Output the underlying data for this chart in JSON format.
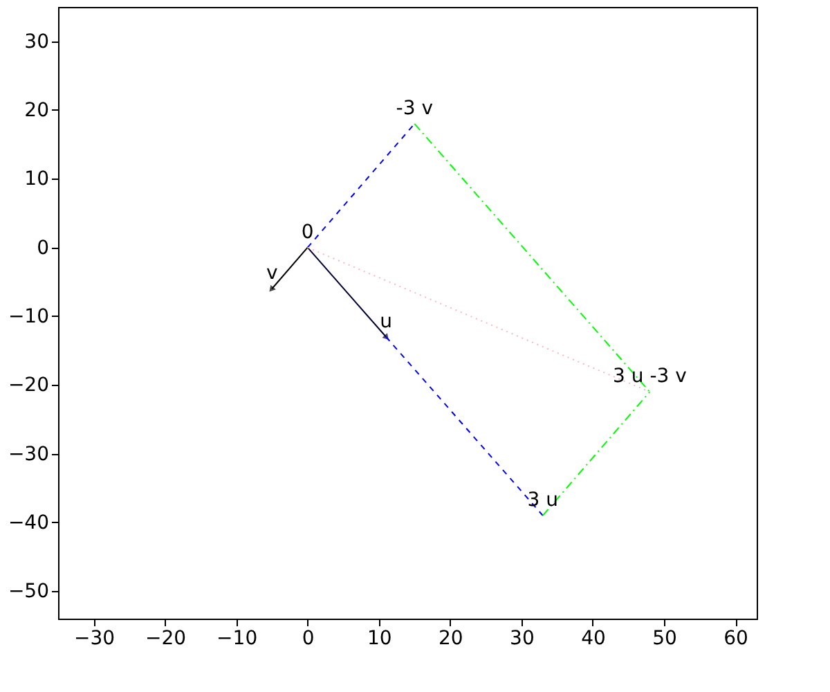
{
  "chart_data": {
    "type": "line",
    "xlim": [
      -35,
      63
    ],
    "ylim": [
      -54,
      35
    ],
    "xticks": [
      -30,
      -20,
      -10,
      0,
      10,
      20,
      30,
      40,
      50,
      60
    ],
    "yticks": [
      -50,
      -40,
      -30,
      -20,
      -10,
      0,
      10,
      20,
      30
    ],
    "grid": false,
    "series": [
      {
        "x": [
          0,
          11
        ],
        "values": [
          0,
          -13
        ],
        "color": "#000033",
        "line_style": "solid"
      },
      {
        "x": [
          0,
          -5
        ],
        "values": [
          0,
          -6
        ],
        "color": "#000000",
        "line_style": "solid"
      },
      {
        "x": [
          0,
          15
        ],
        "values": [
          0,
          18
        ],
        "color": "#0000ff",
        "line_style": "dashed"
      },
      {
        "x": [
          11,
          33
        ],
        "values": [
          -13,
          -39
        ],
        "color": "#0000ff",
        "line_style": "dashed"
      },
      {
        "x": [
          15,
          48
        ],
        "values": [
          18,
          -21
        ],
        "color": "#00ff00",
        "line_style": "dashdot"
      },
      {
        "x": [
          33,
          48
        ],
        "values": [
          -39,
          -21
        ],
        "color": "#00ff00",
        "line_style": "dashdot"
      },
      {
        "x": [
          0,
          48
        ],
        "values": [
          0,
          -21
        ],
        "color": "#ffb6c1",
        "line_style": "dotted"
      }
    ],
    "annotations": [
      {
        "text": "0",
        "x": 0,
        "y": 0
      },
      {
        "text": "v",
        "x": -5,
        "y": -6
      },
      {
        "text": "u",
        "x": 11,
        "y": -13
      },
      {
        "text": "-3 v",
        "x": 15,
        "y": 18
      },
      {
        "text": "3 u",
        "x": 33,
        "y": -39
      },
      {
        "text": "3 u -3 v",
        "x": 48,
        "y": -21
      }
    ]
  }
}
